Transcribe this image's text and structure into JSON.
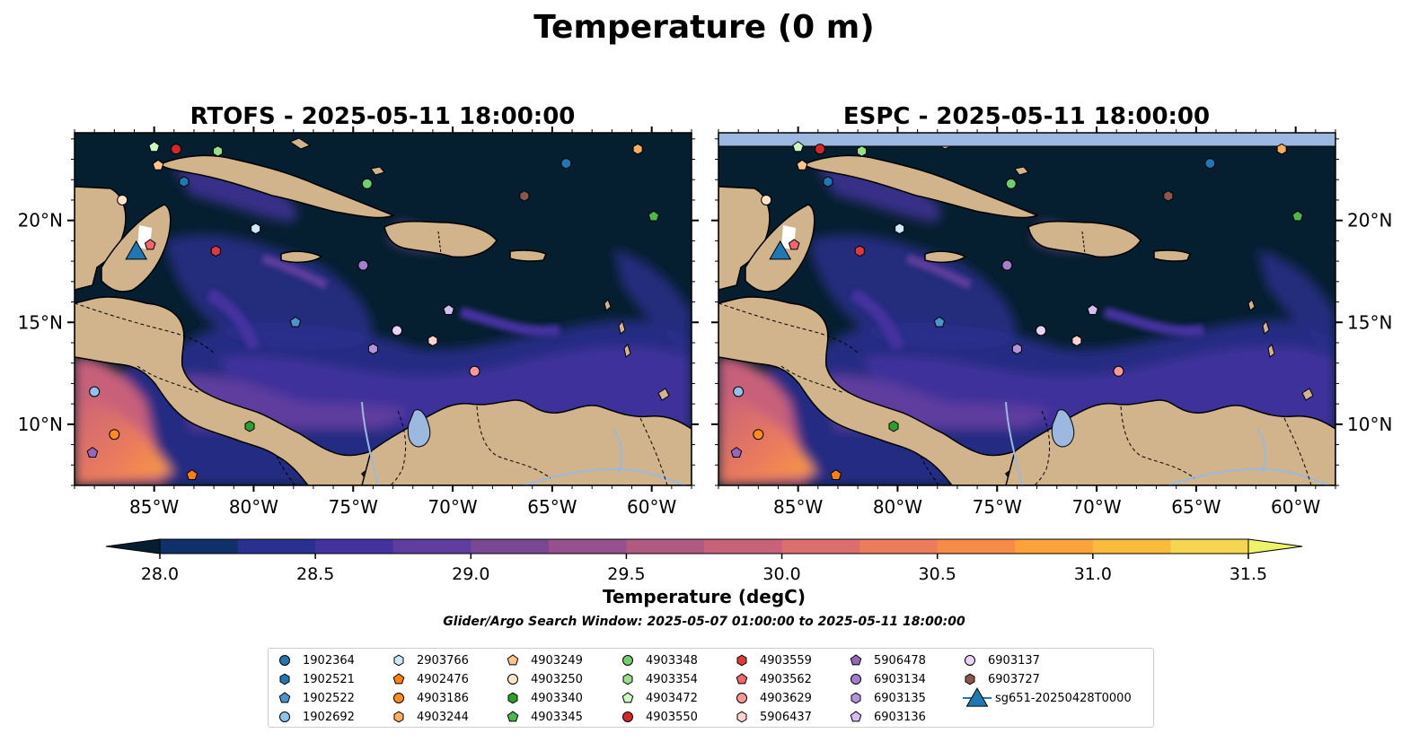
{
  "figure_title": "Temperature (0 m)",
  "search_window": "Glider/Argo Search Window: 2025-05-07 01:00:00 to 2025-05-11 18:00:00",
  "colors": {
    "ocean_dark": "#061f30",
    "ocean_deep": "#0c2b52",
    "land": "#d2b48c",
    "river_lake": "#9cb8de",
    "no_data_band": "#9cb8e0"
  },
  "colorbar": {
    "label": "Temperature (degC)",
    "min": 28.0,
    "max": 31.5,
    "step": 0.25,
    "ticks": [
      "28.0",
      "28.5",
      "29.0",
      "29.5",
      "30.0",
      "30.5",
      "31.0",
      "31.5"
    ],
    "colors": [
      "#061f30",
      "#10306a",
      "#2a3090",
      "#44339f",
      "#5e3d9e",
      "#7a4795",
      "#96508d",
      "#b05a82",
      "#c8617a",
      "#dc6e6e",
      "#ec7d5c",
      "#f78c48",
      "#fba23a",
      "#fbbb3a",
      "#f6d650",
      "#edf46a"
    ]
  },
  "chart_data": [
    {
      "type": "map",
      "title": "RTOFS - 2025-05-11 18:00:00",
      "x_ticks": [
        "85°W",
        "80°W",
        "75°W",
        "70°W",
        "65°W",
        "60°W"
      ],
      "y_ticks": [
        "20°N",
        "15°N",
        "10°N"
      ],
      "y_tick_side": "left",
      "lon_range": [
        -89,
        -58
      ],
      "lat_range": [
        7,
        24.3
      ]
    },
    {
      "type": "map",
      "title": "ESPC - 2025-05-11 18:00:00",
      "x_ticks": [
        "85°W",
        "80°W",
        "75°W",
        "70°W",
        "65°W",
        "60°W"
      ],
      "y_ticks": [
        "20°N",
        "15°N",
        "10°N"
      ],
      "y_tick_side": "right",
      "lon_range": [
        -89,
        -58
      ],
      "lat_range": [
        7,
        24.3
      ]
    }
  ],
  "floats": [
    {
      "id": "1902364",
      "marker": "circle",
      "color": "#1f77b4",
      "lon": -64.3,
      "lat": 22.8
    },
    {
      "id": "1902521",
      "marker": "hexagon",
      "color": "#1f77b4",
      "lon": -83.5,
      "lat": 21.9
    },
    {
      "id": "1902522",
      "marker": "pentagon",
      "color": "#4d94cf",
      "lon": -77.9,
      "lat": 15.0
    },
    {
      "id": "1902692",
      "marker": "circle",
      "color": "#8ec3ea",
      "lon": -88.0,
      "lat": 11.6
    },
    {
      "id": "2903766",
      "marker": "hexagon",
      "color": "#cfe8fb",
      "lon": -79.9,
      "lat": 19.6
    },
    {
      "id": "4902476",
      "marker": "pentagon",
      "color": "#ff7f0e",
      "lon": -83.1,
      "lat": 7.5
    },
    {
      "id": "4903186",
      "marker": "circle",
      "color": "#ff8c1a",
      "lon": -87.0,
      "lat": 9.5
    },
    {
      "id": "4903244",
      "marker": "hexagon",
      "color": "#ffae5c",
      "lon": -60.7,
      "lat": 23.5
    },
    {
      "id": "4903249",
      "marker": "pentagon",
      "color": "#ffc58a",
      "lon": -84.8,
      "lat": 22.7
    },
    {
      "id": "4903250",
      "marker": "circle",
      "color": "#ffe4c9",
      "lon": -86.6,
      "lat": 21.0
    },
    {
      "id": "4903340",
      "marker": "hexagon",
      "color": "#2ca02c",
      "lon": -80.2,
      "lat": 9.9
    },
    {
      "id": "4903345",
      "marker": "pentagon",
      "color": "#4cb84c",
      "lon": -59.9,
      "lat": 20.2
    },
    {
      "id": "4903348",
      "marker": "circle",
      "color": "#6fcf6f",
      "lon": -74.3,
      "lat": 21.8
    },
    {
      "id": "4903354",
      "marker": "hexagon",
      "color": "#98df8a",
      "lon": -81.8,
      "lat": 23.4
    },
    {
      "id": "4903472",
      "marker": "pentagon",
      "color": "#ccf7c2",
      "lon": -85.0,
      "lat": 23.6
    },
    {
      "id": "4903550",
      "marker": "circle",
      "color": "#d62728",
      "lon": -83.9,
      "lat": 23.5
    },
    {
      "id": "4903559",
      "marker": "hexagon",
      "color": "#e0393a",
      "lon": -81.9,
      "lat": 18.5
    },
    {
      "id": "4903562",
      "marker": "pentagon",
      "color": "#f0666a",
      "lon": -85.2,
      "lat": 18.8
    },
    {
      "id": "4903629",
      "marker": "circle",
      "color": "#ff9896",
      "lon": -68.9,
      "lat": 12.6
    },
    {
      "id": "5906437",
      "marker": "hexagon",
      "color": "#ffd3d0",
      "lon": -71.0,
      "lat": 14.1
    },
    {
      "id": "5906478",
      "marker": "pentagon",
      "color": "#9467bd",
      "lon": -88.1,
      "lat": 8.6
    },
    {
      "id": "6903134",
      "marker": "circle",
      "color": "#a67fcc",
      "lon": -74.5,
      "lat": 17.8
    },
    {
      "id": "6903135",
      "marker": "hexagon",
      "color": "#b593dc",
      "lon": -74.0,
      "lat": 13.7
    },
    {
      "id": "6903136",
      "marker": "pentagon",
      "color": "#d4bdf0",
      "lon": -70.2,
      "lat": 15.6
    },
    {
      "id": "6903137",
      "marker": "circle",
      "color": "#e9d2f7",
      "lon": -72.8,
      "lat": 14.6
    },
    {
      "id": "6903727",
      "marker": "hexagon",
      "color": "#8c564b",
      "lon": -66.4,
      "lat": 21.2
    },
    {
      "id": "sg651-20250428T0000",
      "marker": "triangle",
      "color": "#1f77b4",
      "lon": -85.9,
      "lat": 18.5
    }
  ]
}
